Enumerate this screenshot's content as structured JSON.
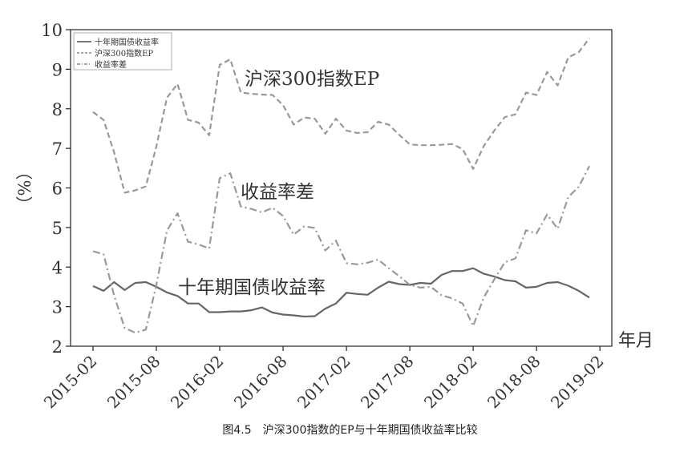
{
  "caption": "图4.5　沪深300指数的EP与十年期国债收益率比较",
  "chart_data": {
    "type": "line",
    "title": "",
    "xlabel": "年月",
    "ylabel": "（%）",
    "ylim": [
      2,
      10
    ],
    "yticks": [
      2,
      3,
      4,
      5,
      6,
      7,
      8,
      9,
      10
    ],
    "x": [
      "2015-02",
      "2015-03",
      "2015-04",
      "2015-05",
      "2015-06",
      "2015-07",
      "2015-08",
      "2015-09",
      "2015-10",
      "2015-11",
      "2015-12",
      "2016-01",
      "2016-02",
      "2016-03",
      "2016-04",
      "2016-05",
      "2016-06",
      "2016-07",
      "2016-08",
      "2016-09",
      "2016-10",
      "2016-11",
      "2016-12",
      "2017-01",
      "2017-02",
      "2017-03",
      "2017-04",
      "2017-05",
      "2017-06",
      "2017-07",
      "2017-08",
      "2017-09",
      "2017-10",
      "2017-11",
      "2017-12",
      "2018-01",
      "2018-02",
      "2018-03",
      "2018-04",
      "2018-05",
      "2018-06",
      "2018-07",
      "2018-08",
      "2018-09",
      "2018-10",
      "2018-11",
      "2018-12",
      "2019-01"
    ],
    "xticks": [
      "2015-02",
      "2015-08",
      "2016-02",
      "2016-08",
      "2017-02",
      "2017-08",
      "2018-02",
      "2018-08",
      "2019-02"
    ],
    "legend_position": "top-left",
    "series": [
      {
        "name": "十年期国债收益率",
        "style": "solid",
        "color": "#666666",
        "values": [
          3.52,
          3.4,
          3.62,
          3.42,
          3.6,
          3.62,
          3.5,
          3.36,
          3.27,
          3.08,
          3.08,
          2.86,
          2.86,
          2.88,
          2.88,
          2.91,
          2.98,
          2.85,
          2.8,
          2.78,
          2.75,
          2.76,
          2.95,
          3.08,
          3.35,
          3.32,
          3.3,
          3.48,
          3.63,
          3.57,
          3.55,
          3.6,
          3.58,
          3.8,
          3.9,
          3.9,
          3.97,
          3.83,
          3.76,
          3.67,
          3.64,
          3.48,
          3.5,
          3.6,
          3.62,
          3.53,
          3.4,
          3.23
        ]
      },
      {
        "name": "沪深300指数EP",
        "style": "dashed",
        "color": "#999999",
        "values": [
          7.92,
          7.72,
          6.9,
          5.88,
          5.94,
          6.04,
          7.05,
          8.28,
          8.63,
          7.72,
          7.65,
          7.33,
          9.11,
          9.25,
          8.41,
          8.38,
          8.36,
          8.35,
          8.09,
          7.6,
          7.78,
          7.75,
          7.37,
          7.75,
          7.45,
          7.39,
          7.41,
          7.67,
          7.6,
          7.34,
          7.1,
          7.08,
          7.08,
          7.09,
          7.11,
          6.98,
          6.48,
          7.06,
          7.45,
          7.79,
          7.86,
          8.41,
          8.35,
          8.93,
          8.59,
          9.3,
          9.43,
          9.78
        ]
      },
      {
        "name": "收益率差",
        "style": "dashdot",
        "color": "#999999",
        "values": [
          4.4,
          4.32,
          3.28,
          2.46,
          2.34,
          2.42,
          3.55,
          4.92,
          5.36,
          4.64,
          4.57,
          4.47,
          6.25,
          6.37,
          5.53,
          5.47,
          5.38,
          5.5,
          5.29,
          4.82,
          5.03,
          4.99,
          4.42,
          4.67,
          4.1,
          4.07,
          4.11,
          4.19,
          3.97,
          3.77,
          3.55,
          3.48,
          3.5,
          3.29,
          3.21,
          3.08,
          2.51,
          3.23,
          3.69,
          4.12,
          4.22,
          4.93,
          4.85,
          5.33,
          4.97,
          5.77,
          6.03,
          6.55
        ]
      }
    ],
    "annotations": [
      "沪深300指数EP",
      "收益率差",
      "十年期国债收益率"
    ]
  }
}
